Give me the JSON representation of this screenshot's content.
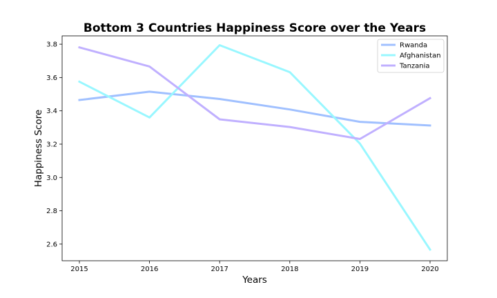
{
  "chart_data": {
    "type": "line",
    "title": "Bottom 3 Countries Happiness Score over the Years",
    "xlabel": "Years",
    "ylabel": "Happiness Score",
    "x": [
      "2015",
      "2016",
      "2017",
      "2018",
      "2019",
      "2020"
    ],
    "yticks": [
      "2.6",
      "2.8",
      "3.0",
      "3.2",
      "3.4",
      "3.6",
      "3.8"
    ],
    "ylim": [
      2.5,
      3.85
    ],
    "grid": false,
    "legend_position": "upper right",
    "series": [
      {
        "name": "Rwanda",
        "color": "#a0c0ff",
        "values": [
          3.465,
          3.515,
          3.471,
          3.408,
          3.334,
          3.312
        ]
      },
      {
        "name": "Afghanistan",
        "color": "#99f7ff",
        "values": [
          3.575,
          3.36,
          3.794,
          3.632,
          3.203,
          2.567
        ]
      },
      {
        "name": "Tanzania",
        "color": "#c0b0ff",
        "values": [
          3.781,
          3.666,
          3.349,
          3.303,
          3.231,
          3.476
        ]
      }
    ]
  }
}
